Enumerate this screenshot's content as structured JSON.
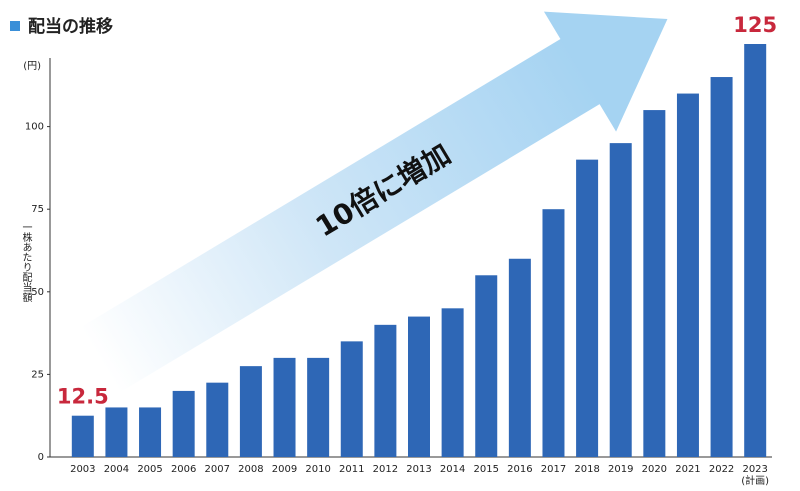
{
  "chart_data": {
    "type": "bar",
    "title": "配当の推移",
    "y_axis_label": "一株あたり配当額",
    "y_unit": "(円)",
    "annotations": [
      "10倍に増加",
      "(計画)"
    ],
    "categories": [
      "2003",
      "2004",
      "2005",
      "2006",
      "2007",
      "2008",
      "2009",
      "2010",
      "2011",
      "2012",
      "2013",
      "2014",
      "2015",
      "2016",
      "2017",
      "2018",
      "2019",
      "2020",
      "2021",
      "2022",
      "2023"
    ],
    "values": [
      12.5,
      15,
      15,
      20,
      22.5,
      27.5,
      30,
      30,
      35,
      40,
      42.5,
      45,
      55,
      60,
      75,
      90,
      95,
      105,
      110,
      115,
      125
    ],
    "value_labels": [
      "12.5",
      null,
      null,
      null,
      null,
      null,
      null,
      null,
      null,
      null,
      null,
      null,
      null,
      null,
      null,
      null,
      null,
      null,
      null,
      null,
      "125"
    ],
    "color": "#2e67b6",
    "label_color": "#c8283c",
    "ylim": [
      0,
      125
    ],
    "yticks": [
      0,
      25,
      50,
      75,
      100
    ]
  }
}
